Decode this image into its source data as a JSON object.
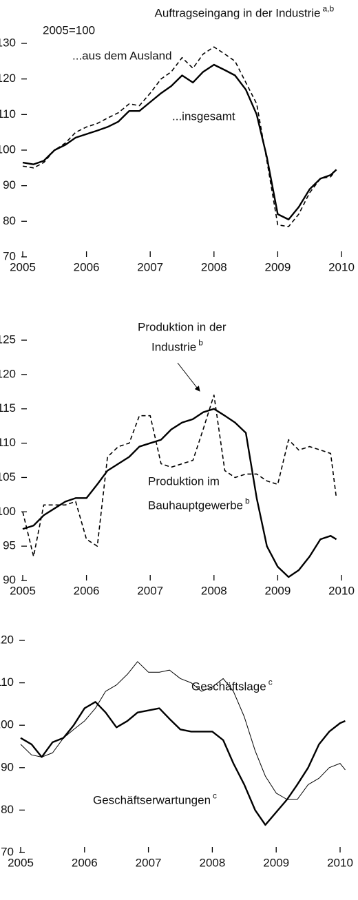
{
  "chart_data": [
    {
      "type": "line",
      "title": "Auftragseingang in der Industrie",
      "title_note": "a,b",
      "subtitle": "2005=100",
      "x": [
        2005,
        2005.17,
        2005.33,
        2005.5,
        2005.67,
        2005.83,
        2006,
        2006.17,
        2006.33,
        2006.5,
        2006.67,
        2006.83,
        2007,
        2007.17,
        2007.33,
        2007.5,
        2007.67,
        2007.83,
        2008,
        2008.17,
        2008.33,
        2008.5,
        2008.67,
        2008.83,
        2009,
        2009.17,
        2009.33,
        2009.5,
        2009.67,
        2009.83,
        2009.92
      ],
      "series": [
        {
          "label": [
            "...insgesamt"
          ],
          "color": "#000",
          "dash": false,
          "width": 2.4,
          "values": [
            96.5,
            96,
            97,
            100,
            101.5,
            103.5,
            104.5,
            105.5,
            106.5,
            108,
            111,
            111,
            113.5,
            116,
            118,
            121,
            119,
            122,
            124,
            122.5,
            121,
            117,
            110,
            98,
            82,
            80.5,
            84,
            89,
            92,
            93,
            94.5
          ]
        },
        {
          "label": [
            "...aus dem Ausland"
          ],
          "color": "#000",
          "dash": true,
          "width": 1.6,
          "values": [
            95.5,
            95,
            96.5,
            100,
            102,
            105,
            106.5,
            107.5,
            109,
            110.5,
            113,
            112.5,
            116,
            120,
            122,
            126,
            123,
            127,
            129,
            127,
            125,
            119,
            113,
            97,
            79,
            78.5,
            82,
            88,
            92,
            92.5,
            94.5
          ]
        }
      ],
      "xlim": [
        2005,
        2010
      ],
      "xticks": [
        2005,
        2006,
        2007,
        2008,
        2009,
        2010
      ],
      "ylim": [
        70,
        130
      ],
      "yticks": [
        70,
        80,
        90,
        100,
        110,
        120,
        130
      ]
    },
    {
      "type": "line",
      "x": [
        2005,
        2005.17,
        2005.33,
        2005.5,
        2005.67,
        2005.83,
        2006,
        2006.17,
        2006.33,
        2006.5,
        2006.67,
        2006.83,
        2007,
        2007.17,
        2007.33,
        2007.5,
        2007.67,
        2007.83,
        2008,
        2008.17,
        2008.33,
        2008.5,
        2008.67,
        2008.83,
        2009,
        2009.17,
        2009.33,
        2009.5,
        2009.67,
        2009.83,
        2009.92
      ],
      "series": [
        {
          "label": [
            "Produktion in der",
            "Industrie"
          ],
          "note": "b",
          "color": "#000",
          "dash": false,
          "width": 2.4,
          "values": [
            97.5,
            98,
            99.5,
            100.5,
            101.5,
            102,
            102,
            104,
            106,
            107,
            108,
            109.5,
            110,
            110.5,
            112,
            113,
            113.5,
            114.5,
            115,
            114,
            113,
            111.5,
            102,
            95,
            92,
            90.5,
            91.5,
            93.5,
            96,
            96.5,
            96
          ]
        },
        {
          "label": [
            "Produktion im",
            "Bauhauptgewerbe"
          ],
          "note": "b",
          "color": "#000",
          "dash": true,
          "width": 1.6,
          "values": [
            100,
            93.5,
            101,
            101,
            101,
            101.5,
            96,
            95,
            108,
            109.5,
            110,
            114,
            114,
            107,
            106.5,
            107,
            107.5,
            112,
            117,
            106,
            105,
            105.5,
            105.5,
            104.5,
            104,
            110.5,
            109,
            109.5,
            109,
            108.5,
            102
          ]
        }
      ],
      "xlim": [
        2005,
        2010
      ],
      "xticks": [
        2005,
        2006,
        2007,
        2008,
        2009,
        2010
      ],
      "ylim": [
        90,
        125
      ],
      "yticks": [
        90,
        95,
        100,
        105,
        110,
        115,
        120,
        125
      ]
    },
    {
      "type": "line",
      "x": [
        2005,
        2005.17,
        2005.33,
        2005.5,
        2005.67,
        2005.83,
        2006,
        2006.17,
        2006.33,
        2006.5,
        2006.67,
        2006.83,
        2007,
        2007.17,
        2007.33,
        2007.5,
        2007.67,
        2007.83,
        2008,
        2008.17,
        2008.33,
        2008.5,
        2008.67,
        2008.83,
        2009,
        2009.17,
        2009.33,
        2009.5,
        2009.67,
        2009.83,
        2010,
        2010.08
      ],
      "series": [
        {
          "label": [
            "Geschäftslage"
          ],
          "note": "c",
          "color": "#000",
          "dash": false,
          "width": 1,
          "values": [
            95.5,
            93,
            92.5,
            93.5,
            97,
            99,
            101,
            104,
            108,
            109.5,
            112,
            115,
            112.5,
            112.5,
            113,
            111,
            110,
            108,
            109,
            111,
            108,
            102,
            94,
            88,
            84,
            82.5,
            82.5,
            86,
            87.5,
            90,
            91,
            89.5
          ]
        },
        {
          "label": [
            "Geschäftserwartungen"
          ],
          "note": "c",
          "color": "#000",
          "dash": false,
          "width": 2.4,
          "values": [
            97,
            95.5,
            92.5,
            96,
            97,
            100,
            104,
            105.5,
            103,
            99.5,
            101,
            103,
            103.5,
            104,
            101.5,
            99,
            98.5,
            98.5,
            98.5,
            96.5,
            91,
            86,
            80,
            76.5,
            79.5,
            82.5,
            86,
            90,
            95.5,
            98.5,
            100.5,
            101
          ]
        }
      ],
      "xlim": [
        2005,
        2010
      ],
      "xticks": [
        2005,
        2006,
        2007,
        2008,
        2009,
        2010
      ],
      "ylim": [
        70,
        120
      ],
      "yticks": [
        70,
        80,
        90,
        100,
        110,
        120
      ]
    }
  ]
}
